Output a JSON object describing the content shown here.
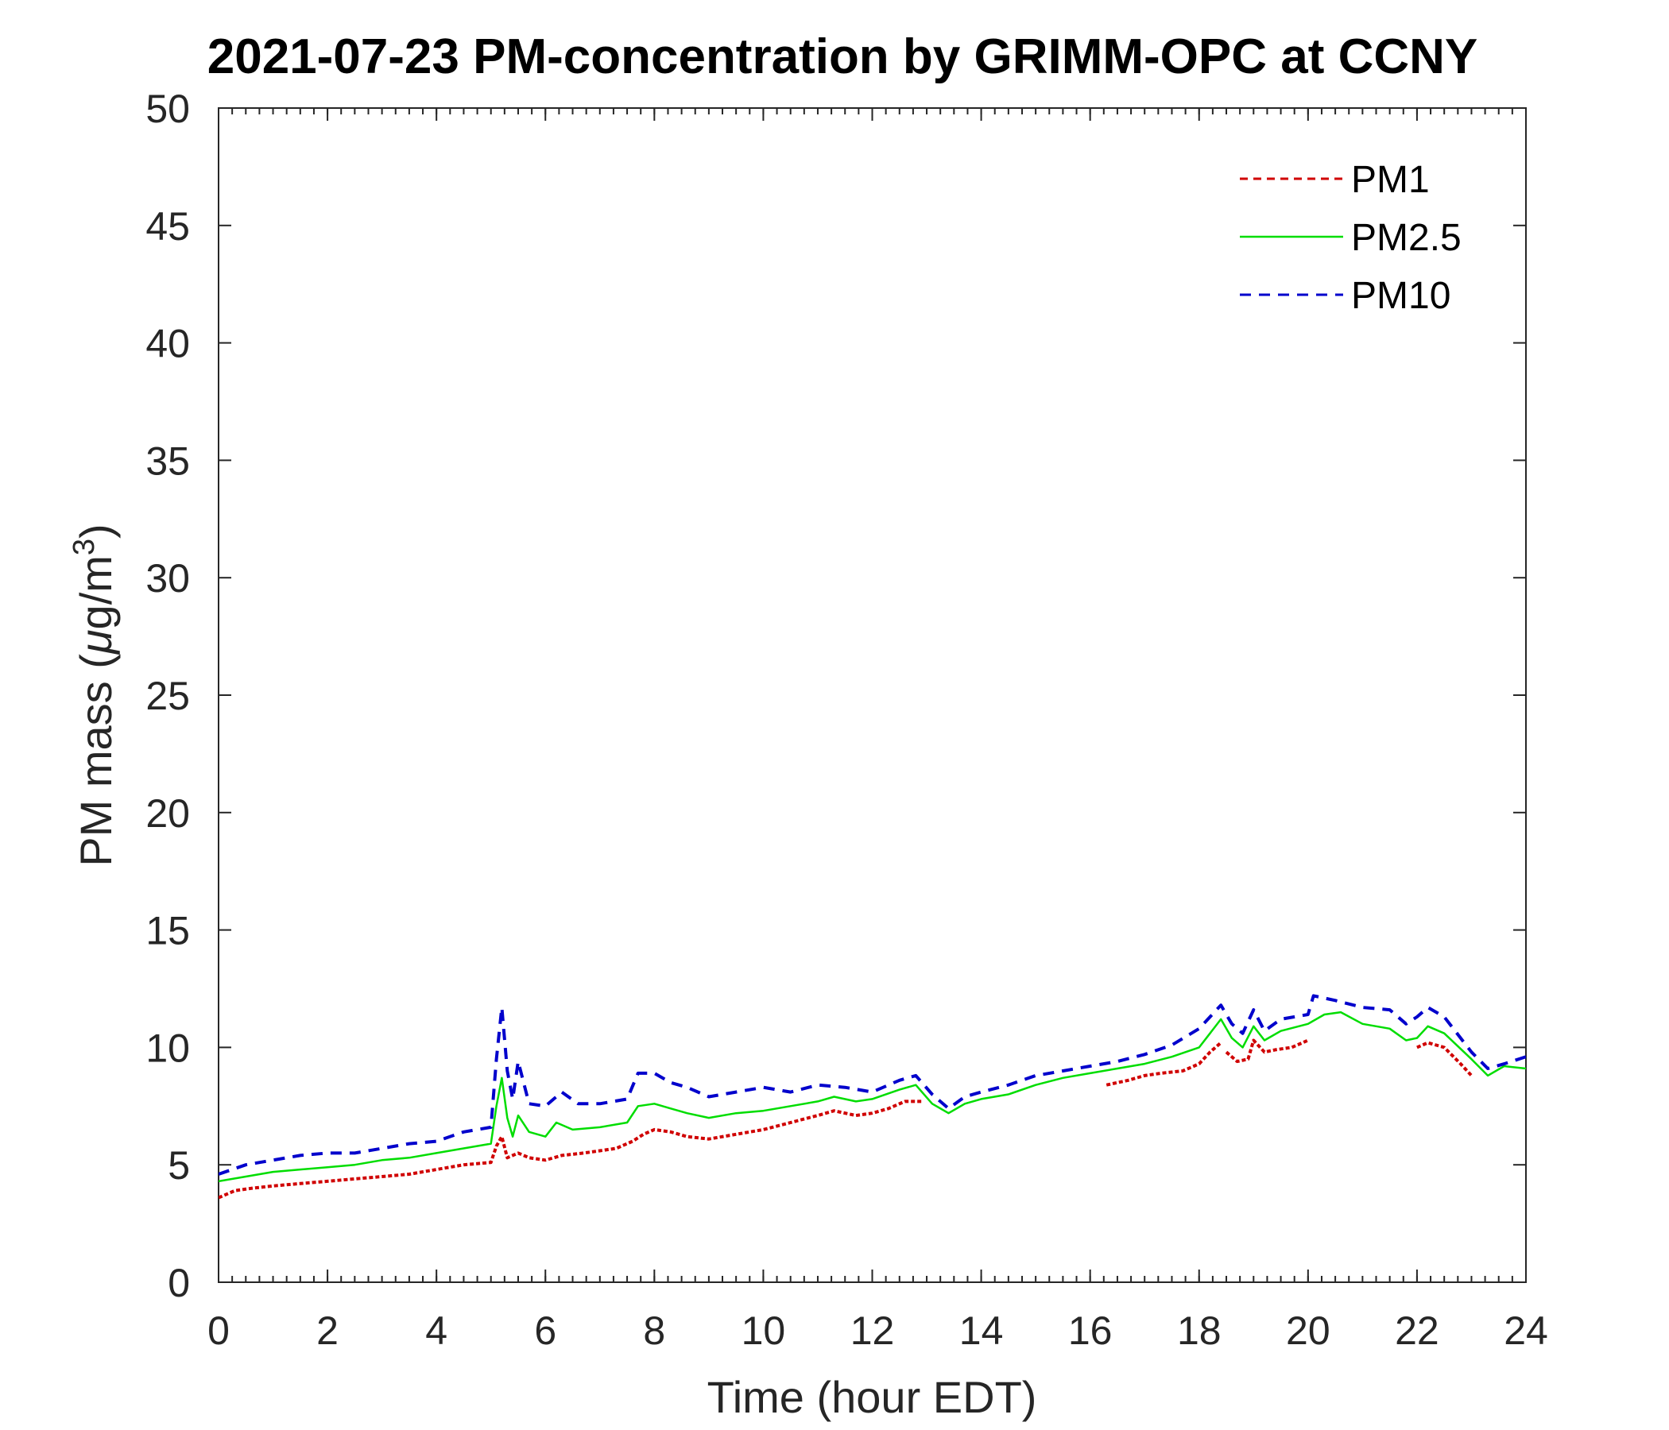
{
  "chart_data": {
    "type": "line",
    "title": "2021-07-23 PM-concentration by GRIMM-OPC at CCNY",
    "xlabel": "Time (hour EDT)",
    "ylabel_main": "PM mass (",
    "ylabel_mu": "μ",
    "ylabel_unit": "g/m",
    "ylabel_sup": "3",
    "ylabel_close": ")",
    "xlim": [
      0,
      24
    ],
    "ylim": [
      0,
      50
    ],
    "xticks": [
      0,
      2,
      4,
      6,
      8,
      10,
      12,
      14,
      16,
      18,
      20,
      22,
      24
    ],
    "yticks": [
      0,
      5,
      10,
      15,
      20,
      25,
      30,
      35,
      40,
      45,
      50
    ],
    "grid": false,
    "legend_position": "top-right",
    "series": [
      {
        "name": "PM1",
        "color": "#d00000",
        "style": "dotted",
        "points": [
          [
            0,
            3.6
          ],
          [
            0.3,
            3.9
          ],
          [
            0.6,
            4.0
          ],
          [
            1,
            4.1
          ],
          [
            1.5,
            4.2
          ],
          [
            2,
            4.3
          ],
          [
            2.5,
            4.4
          ],
          [
            3,
            4.5
          ],
          [
            3.5,
            4.6
          ],
          [
            4,
            4.8
          ],
          [
            4.5,
            5.0
          ],
          [
            5,
            5.1
          ],
          [
            5.1,
            5.8
          ],
          [
            5.2,
            6.2
          ],
          [
            5.3,
            5.3
          ],
          [
            5.5,
            5.5
          ],
          [
            5.7,
            5.3
          ],
          [
            6,
            5.2
          ],
          [
            6.3,
            5.4
          ],
          [
            6.7,
            5.5
          ],
          [
            7,
            5.6
          ],
          [
            7.3,
            5.7
          ],
          [
            7.6,
            6.0
          ],
          [
            7.8,
            6.3
          ],
          [
            8,
            6.5
          ],
          [
            8.3,
            6.4
          ],
          [
            8.6,
            6.2
          ],
          [
            9,
            6.1
          ],
          [
            9.5,
            6.3
          ],
          [
            10,
            6.5
          ],
          [
            10.5,
            6.8
          ],
          [
            11,
            7.1
          ],
          [
            11.3,
            7.3
          ],
          [
            11.7,
            7.1
          ],
          [
            12,
            7.2
          ],
          [
            12.3,
            7.4
          ],
          [
            12.6,
            7.7
          ],
          [
            12.9,
            7.7
          ]
        ]
      },
      {
        "name": "",
        "color": "#d00000",
        "style": "dotted",
        "points": [
          [
            16.3,
            8.4
          ],
          [
            16.7,
            8.6
          ],
          [
            17,
            8.8
          ],
          [
            17.3,
            8.9
          ],
          [
            17.7,
            9.0
          ],
          [
            18,
            9.3
          ],
          [
            18.2,
            9.8
          ],
          [
            18.4,
            10.2
          ]
        ]
      },
      {
        "name": "",
        "color": "#d00000",
        "style": "dotted",
        "points": [
          [
            18.5,
            9.8
          ],
          [
            18.7,
            9.4
          ],
          [
            18.9,
            9.5
          ],
          [
            19.0,
            10.3
          ],
          [
            19.2,
            9.8
          ],
          [
            19.4,
            9.9
          ],
          [
            19.7,
            10.0
          ],
          [
            20,
            10.3
          ]
        ]
      },
      {
        "name": "",
        "color": "#d00000",
        "style": "dotted",
        "points": [
          [
            22.0,
            10.0
          ],
          [
            22.2,
            10.2
          ],
          [
            22.5,
            10.0
          ],
          [
            22.8,
            9.3
          ],
          [
            23.0,
            8.8
          ]
        ]
      },
      {
        "name": "PM2.5",
        "color": "#00dd00",
        "style": "solid",
        "points": [
          [
            0,
            4.3
          ],
          [
            0.5,
            4.5
          ],
          [
            1,
            4.7
          ],
          [
            1.5,
            4.8
          ],
          [
            2,
            4.9
          ],
          [
            2.5,
            5.0
          ],
          [
            3,
            5.2
          ],
          [
            3.5,
            5.3
          ],
          [
            4,
            5.5
          ],
          [
            4.5,
            5.7
          ],
          [
            5,
            5.9
          ],
          [
            5.1,
            7.5
          ],
          [
            5.2,
            8.7
          ],
          [
            5.3,
            7.0
          ],
          [
            5.4,
            6.2
          ],
          [
            5.5,
            7.1
          ],
          [
            5.7,
            6.4
          ],
          [
            6,
            6.2
          ],
          [
            6.2,
            6.8
          ],
          [
            6.5,
            6.5
          ],
          [
            7,
            6.6
          ],
          [
            7.5,
            6.8
          ],
          [
            7.7,
            7.5
          ],
          [
            8,
            7.6
          ],
          [
            8.3,
            7.4
          ],
          [
            8.6,
            7.2
          ],
          [
            9,
            7.0
          ],
          [
            9.5,
            7.2
          ],
          [
            10,
            7.3
          ],
          [
            10.5,
            7.5
          ],
          [
            11,
            7.7
          ],
          [
            11.3,
            7.9
          ],
          [
            11.7,
            7.7
          ],
          [
            12,
            7.8
          ],
          [
            12.5,
            8.2
          ],
          [
            12.8,
            8.4
          ],
          [
            13.1,
            7.6
          ],
          [
            13.4,
            7.2
          ],
          [
            13.7,
            7.6
          ],
          [
            14,
            7.8
          ],
          [
            14.5,
            8.0
          ],
          [
            15,
            8.4
          ],
          [
            15.5,
            8.7
          ],
          [
            16,
            8.9
          ],
          [
            16.5,
            9.1
          ],
          [
            17,
            9.3
          ],
          [
            17.5,
            9.6
          ],
          [
            18,
            10.0
          ],
          [
            18.2,
            10.6
          ],
          [
            18.4,
            11.2
          ],
          [
            18.6,
            10.4
          ],
          [
            18.8,
            10.0
          ],
          [
            19.0,
            10.9
          ],
          [
            19.2,
            10.3
          ],
          [
            19.5,
            10.7
          ],
          [
            20,
            11.0
          ],
          [
            20.3,
            11.4
          ],
          [
            20.6,
            11.5
          ],
          [
            21,
            11.0
          ],
          [
            21.5,
            10.8
          ],
          [
            21.8,
            10.3
          ],
          [
            22,
            10.4
          ],
          [
            22.2,
            10.9
          ],
          [
            22.5,
            10.6
          ],
          [
            23,
            9.5
          ],
          [
            23.3,
            8.8
          ],
          [
            23.6,
            9.2
          ],
          [
            24,
            9.1
          ]
        ]
      },
      {
        "name": "PM10",
        "color": "#0000cc",
        "style": "dashed",
        "points": [
          [
            0,
            4.6
          ],
          [
            0.5,
            5.0
          ],
          [
            1,
            5.2
          ],
          [
            1.5,
            5.4
          ],
          [
            2,
            5.5
          ],
          [
            2.5,
            5.5
          ],
          [
            3,
            5.7
          ],
          [
            3.5,
            5.9
          ],
          [
            4,
            6.0
          ],
          [
            4.5,
            6.4
          ],
          [
            5,
            6.6
          ],
          [
            5.1,
            9.5
          ],
          [
            5.2,
            11.7
          ],
          [
            5.3,
            9.0
          ],
          [
            5.4,
            7.8
          ],
          [
            5.5,
            9.4
          ],
          [
            5.7,
            7.6
          ],
          [
            6,
            7.5
          ],
          [
            6.3,
            8.1
          ],
          [
            6.6,
            7.6
          ],
          [
            7,
            7.6
          ],
          [
            7.5,
            7.8
          ],
          [
            7.7,
            8.9
          ],
          [
            8,
            8.9
          ],
          [
            8.3,
            8.5
          ],
          [
            8.6,
            8.3
          ],
          [
            9,
            7.9
          ],
          [
            9.5,
            8.1
          ],
          [
            10,
            8.3
          ],
          [
            10.5,
            8.1
          ],
          [
            11,
            8.4
          ],
          [
            11.5,
            8.3
          ],
          [
            12,
            8.1
          ],
          [
            12.5,
            8.6
          ],
          [
            12.8,
            8.8
          ],
          [
            13.1,
            8.0
          ],
          [
            13.4,
            7.4
          ],
          [
            13.7,
            7.9
          ],
          [
            14,
            8.1
          ],
          [
            14.5,
            8.4
          ],
          [
            15,
            8.8
          ],
          [
            15.5,
            9.0
          ],
          [
            16,
            9.2
          ],
          [
            16.5,
            9.4
          ],
          [
            17,
            9.7
          ],
          [
            17.5,
            10.1
          ],
          [
            18,
            10.8
          ],
          [
            18.2,
            11.3
          ],
          [
            18.4,
            11.8
          ],
          [
            18.6,
            11.0
          ],
          [
            18.8,
            10.6
          ],
          [
            19.0,
            11.6
          ],
          [
            19.2,
            10.7
          ],
          [
            19.5,
            11.2
          ],
          [
            20,
            11.4
          ],
          [
            20.1,
            12.2
          ],
          [
            20.5,
            12.0
          ],
          [
            21,
            11.7
          ],
          [
            21.5,
            11.6
          ],
          [
            21.8,
            11.0
          ],
          [
            22,
            11.3
          ],
          [
            22.2,
            11.7
          ],
          [
            22.5,
            11.3
          ],
          [
            23,
            9.8
          ],
          [
            23.3,
            9.1
          ],
          [
            23.6,
            9.3
          ],
          [
            24,
            9.6
          ]
        ]
      }
    ]
  }
}
